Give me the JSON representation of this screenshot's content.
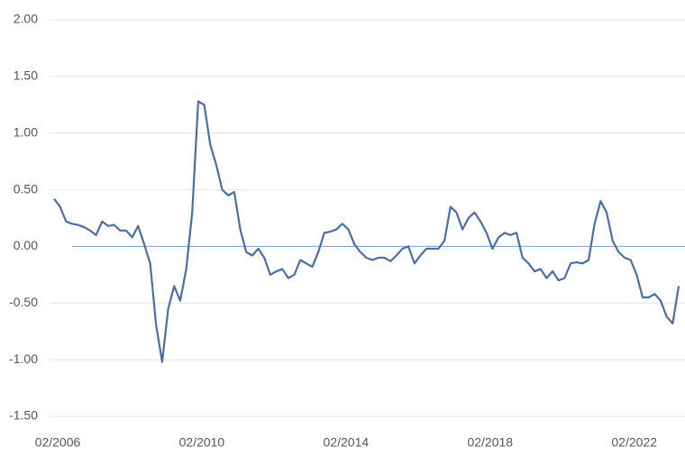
{
  "chart_data": {
    "type": "line",
    "categories": [
      "02/2006",
      null,
      null,
      null,
      null,
      null,
      null,
      null,
      null,
      null,
      null,
      null,
      null,
      null,
      null,
      null,
      null,
      null,
      null,
      null,
      null,
      null,
      null,
      null,
      "02/2010",
      null,
      null,
      null,
      null,
      null,
      null,
      null,
      null,
      null,
      null,
      null,
      null,
      null,
      null,
      null,
      null,
      null,
      null,
      null,
      null,
      null,
      null,
      null,
      "02/2014",
      null,
      null,
      null,
      null,
      null,
      null,
      null,
      null,
      null,
      null,
      null,
      null,
      null,
      null,
      null,
      null,
      null,
      null,
      null,
      null,
      null,
      null,
      null,
      "02/2018",
      null,
      null,
      null,
      null,
      null,
      null,
      null,
      null,
      null,
      null,
      null,
      null,
      null,
      null,
      null,
      null,
      null,
      null,
      null,
      null,
      null,
      null,
      null,
      "02/2022",
      null,
      null,
      null,
      null,
      null,
      null,
      null,
      null
    ],
    "series": [
      {
        "color": "#4a6fa5",
        "values": [
          0.42,
          0.35,
          0.22,
          0.2,
          0.19,
          0.17,
          0.14,
          0.1,
          0.22,
          0.18,
          0.19,
          0.14,
          0.14,
          0.08,
          0.18,
          0.02,
          -0.15,
          -0.7,
          -1.02,
          -0.55,
          -0.35,
          -0.48,
          -0.2,
          0.3,
          1.28,
          1.25,
          0.9,
          0.72,
          0.5,
          0.45,
          0.48,
          0.15,
          -0.05,
          -0.08,
          -0.02,
          -0.1,
          -0.25,
          -0.22,
          -0.2,
          -0.28,
          -0.25,
          -0.12,
          -0.15,
          -0.18,
          -0.05,
          0.12,
          0.13,
          0.15,
          0.2,
          0.15,
          0.02,
          -0.05,
          -0.1,
          -0.12,
          -0.1,
          -0.1,
          -0.13,
          -0.08,
          -0.02,
          0.0,
          -0.15,
          -0.08,
          -0.02,
          -0.02,
          -0.02,
          0.05,
          0.35,
          0.3,
          0.15,
          0.25,
          0.3,
          0.22,
          0.12,
          -0.02,
          0.08,
          0.12,
          0.1,
          0.12,
          -0.1,
          -0.15,
          -0.22,
          -0.2,
          -0.28,
          -0.22,
          -0.3,
          -0.28,
          -0.15,
          -0.14,
          -0.15,
          -0.12,
          0.2,
          0.4,
          0.3,
          0.05,
          -0.05,
          -0.1,
          -0.12,
          -0.25,
          -0.45,
          -0.45,
          -0.42,
          -0.48,
          -0.62,
          -0.68,
          -0.35
        ]
      }
    ],
    "ylim": [
      -1.5,
      2
    ],
    "yticks": [
      {
        "value": -1.5,
        "label": "-1.50"
      },
      {
        "value": -1,
        "label": "-1.00"
      },
      {
        "value": -0.5,
        "label": "-0.50"
      },
      {
        "value": 0,
        "label": "0.00"
      },
      {
        "value": 0.5,
        "label": "0.50"
      },
      {
        "value": 1,
        "label": "1.00"
      },
      {
        "value": 1.5,
        "label": "1.50"
      },
      {
        "value": 2,
        "label": "2.00"
      }
    ],
    "grid": true
  }
}
